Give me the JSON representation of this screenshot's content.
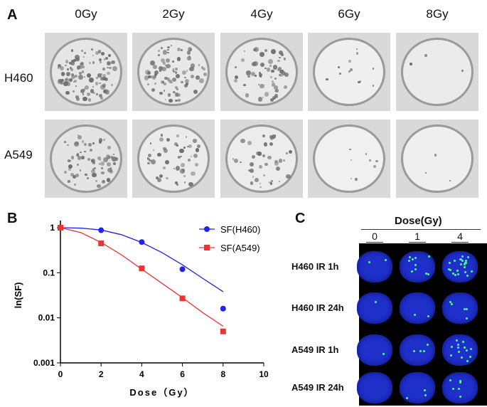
{
  "panel_a": {
    "letter": "A",
    "doses": [
      "0Gy",
      "2Gy",
      "4Gy",
      "6Gy",
      "8Gy"
    ],
    "rows": [
      "H460",
      "A549"
    ]
  },
  "panel_b": {
    "letter": "B"
  },
  "panel_c": {
    "letter": "C",
    "dose_header": "Dose(Gy)",
    "doses": [
      "0",
      "1",
      "4"
    ],
    "rows": [
      "H460 IR 1h",
      "H460 IR 24h",
      "A549 IR 1h",
      "A549 IR 24h"
    ]
  },
  "colors": {
    "h460": "#2222ee",
    "a549": "#ee3333",
    "nucleus": "#1f2fc9",
    "foci": "#4cff8a"
  },
  "chart_data": {
    "type": "scatter",
    "xlabel": "Dose（Gy）",
    "ylabel": "ln(SF)",
    "xlim": [
      0,
      10
    ],
    "ylim": [
      0.001,
      1.5
    ],
    "yscale": "log",
    "xticks": [
      0,
      2,
      4,
      6,
      8,
      10
    ],
    "yticks": [
      1,
      0.1,
      0.01,
      0.001
    ],
    "ytick_labels": [
      "1",
      "0.1",
      "0.01",
      "0.001"
    ],
    "legend_position": "top-right",
    "series": [
      {
        "name": "SF(H460)",
        "color": "#2222ee",
        "marker": "circle",
        "x": [
          0,
          2,
          4,
          6,
          8
        ],
        "y": [
          1.0,
          0.88,
          0.48,
          0.12,
          0.016
        ],
        "fit_x": [
          0,
          1,
          2,
          3,
          4,
          5,
          6,
          7,
          8
        ],
        "fit_y": [
          1.0,
          0.98,
          0.89,
          0.7,
          0.47,
          0.28,
          0.15,
          0.075,
          0.038
        ]
      },
      {
        "name": "SF(A549)",
        "color": "#ee3333",
        "marker": "square",
        "x": [
          0,
          2,
          4,
          6,
          8
        ],
        "y": [
          1.0,
          0.45,
          0.125,
          0.027,
          0.005
        ],
        "fit_x": [
          0,
          1,
          2,
          3,
          4,
          5,
          6,
          7,
          8
        ],
        "fit_y": [
          1.0,
          0.78,
          0.47,
          0.25,
          0.12,
          0.058,
          0.028,
          0.013,
          0.0065
        ]
      }
    ]
  }
}
